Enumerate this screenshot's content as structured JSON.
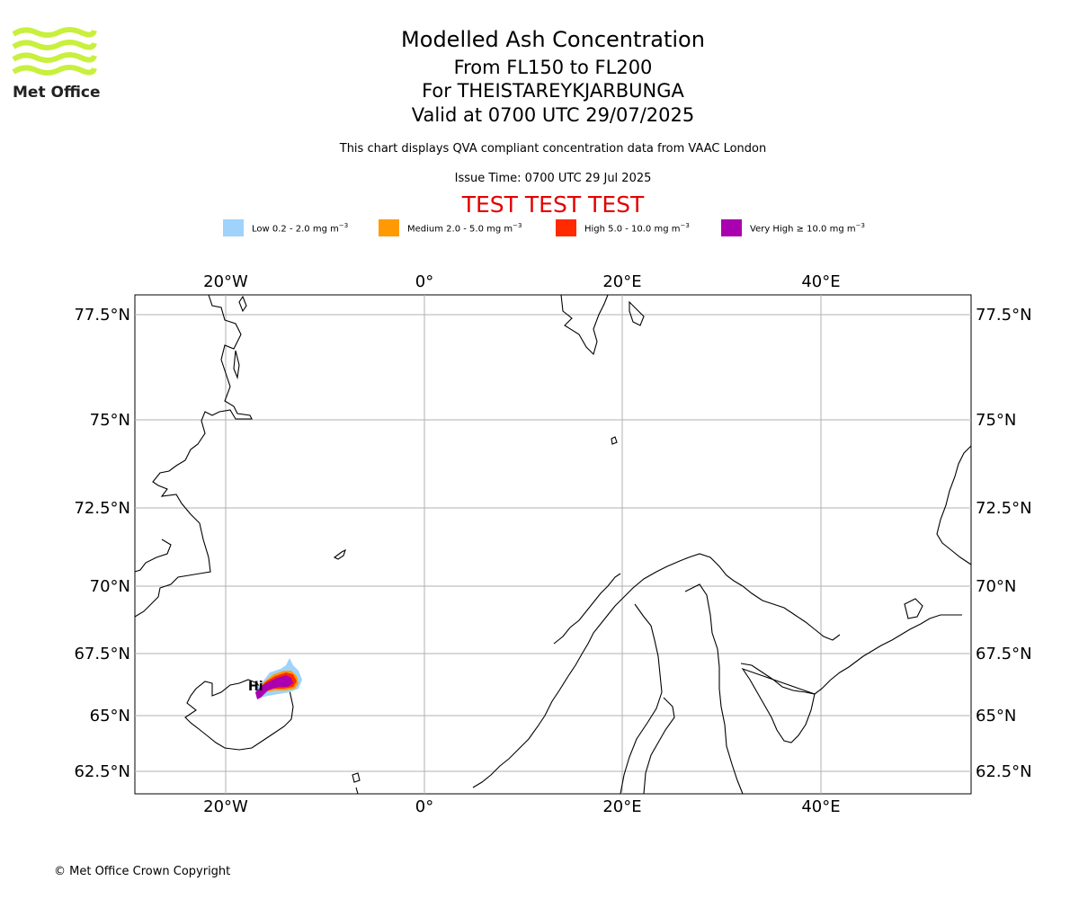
{
  "header": {
    "title": "Modelled Ash Concentration",
    "levels": "From FL150 to FL200",
    "volcano": "For THEISTAREYKJARBUNGA",
    "valid": "Valid at 0700 UTC 29/07/2025",
    "subtitle": "This chart displays QVA compliant concentration data from VAAC London",
    "issue_time": "Issue Time: 0700 UTC 29 Jul 2025",
    "test_banner": "TEST TEST TEST"
  },
  "logo": {
    "text": "Met Office",
    "color": "#c8f03c"
  },
  "legend": [
    {
      "label": "Low 0.2 - 2.0 mg m",
      "exponent": "−3",
      "color": "#9fd3fb"
    },
    {
      "label": "Medium 2.0 - 5.0 mg m",
      "exponent": "−3",
      "color": "#ff9a05"
    },
    {
      "label": "High 5.0 - 10.0 mg m",
      "exponent": "−3",
      "color": "#ff2a00"
    },
    {
      "label": "Very High ≥ 10.0 mg m",
      "exponent": "−3",
      "color": "#aa00b0"
    }
  ],
  "map": {
    "lon_ticks": [
      "20°W",
      "0°",
      "20°E",
      "40°E"
    ],
    "lat_ticks": [
      "77.5°N",
      "75°N",
      "72.5°N",
      "70°N",
      "67.5°N",
      "65°N",
      "62.5°N"
    ],
    "grid": true
  },
  "footer": {
    "copyright": "© Met Office Crown Copyright"
  }
}
